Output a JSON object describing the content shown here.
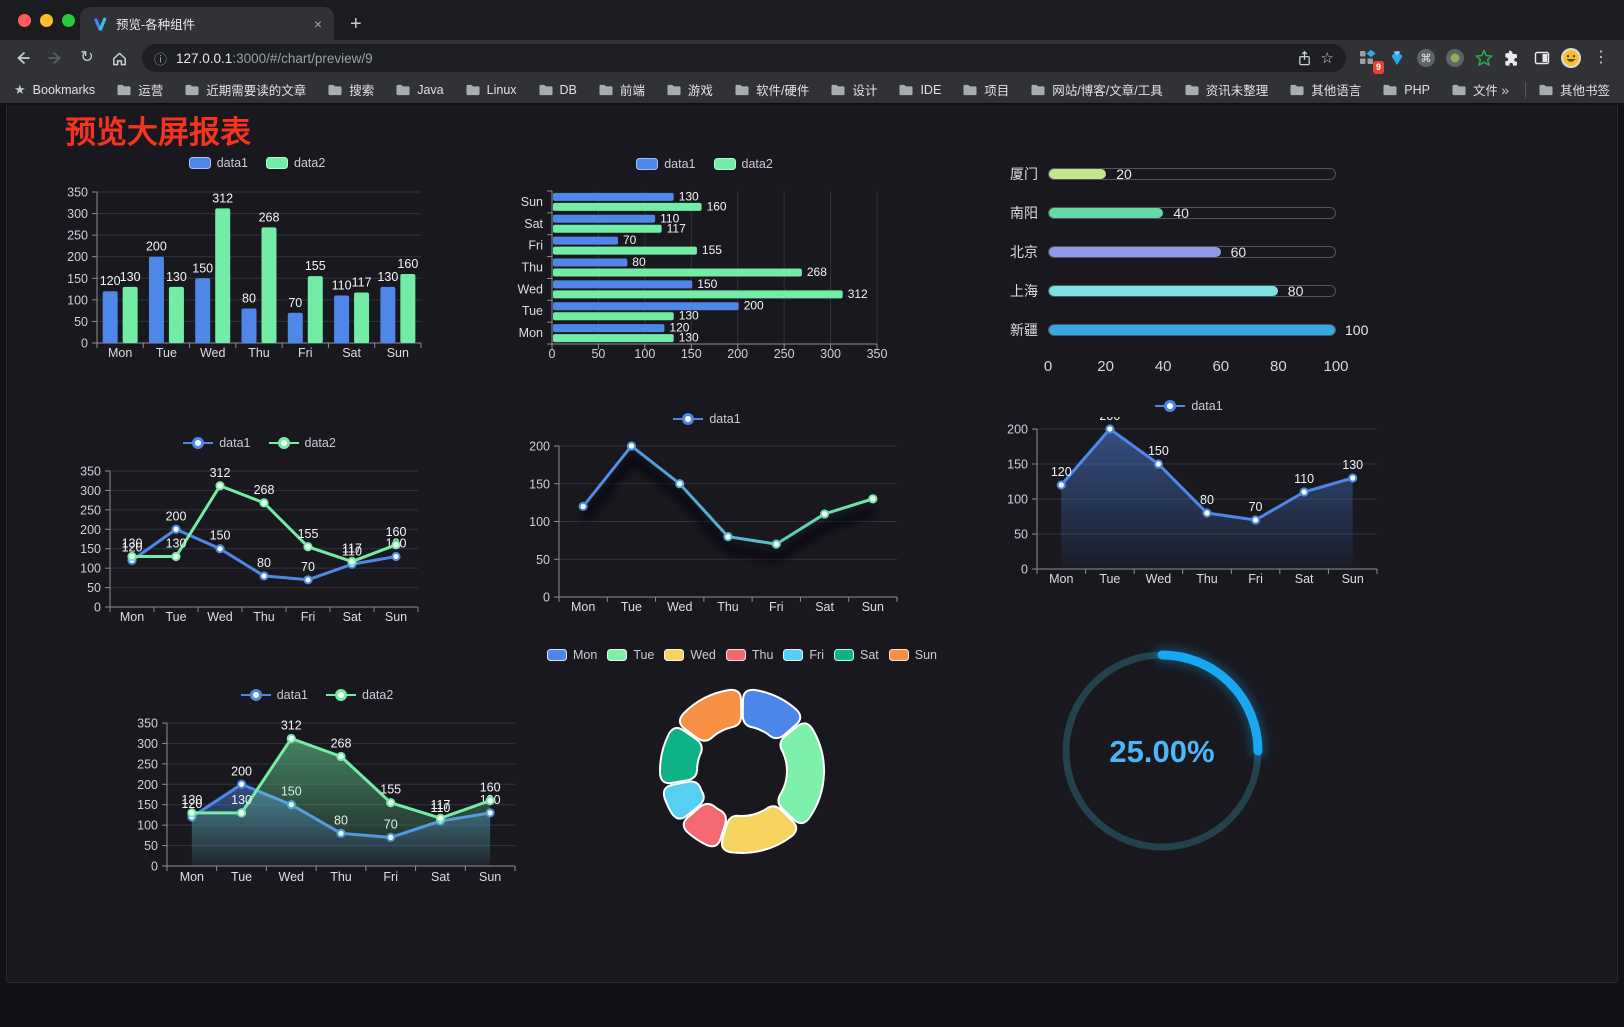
{
  "browser": {
    "tab": {
      "title": "预览-各种组件",
      "close_glyph": "×",
      "new_tab_glyph": "+"
    },
    "url": {
      "host": "127.0.0.1",
      "rest": ":3000/#/chart/preview/9"
    },
    "extension_badge": "9",
    "bookmarks": {
      "label": "Bookmarks",
      "folders": [
        "运营",
        "近期需要读的文章",
        "搜索",
        "Java",
        "Linux",
        "DB",
        "前端",
        "游戏",
        "软件/硬件",
        "设计",
        "IDE",
        "项目",
        "网站/博客/文章/工具",
        "资讯未整理",
        "其他语言",
        "PHP",
        "文件服务器"
      ],
      "overflow_glyph": "»",
      "other_bookmarks": "其他书签"
    }
  },
  "page": {
    "title": "预览大屏报表",
    "title_color": "#f5341f"
  },
  "chart_data": [
    {
      "id": "bar-vertical",
      "type": "bar",
      "categories": [
        "Mon",
        "Tue",
        "Wed",
        "Thu",
        "Fri",
        "Sat",
        "Sun"
      ],
      "series": [
        {
          "name": "data1",
          "color": "#4f87e8",
          "values": [
            120,
            200,
            150,
            80,
            70,
            110,
            130
          ]
        },
        {
          "name": "data2",
          "color": "#73eda6",
          "values": [
            130,
            130,
            312,
            268,
            155,
            117,
            160
          ]
        }
      ],
      "ylim": [
        0,
        350
      ],
      "ytick": 50,
      "value_labels": true,
      "grid": true,
      "legend_position": "top"
    },
    {
      "id": "bar-horizontal",
      "type": "bar-h",
      "categories": [
        "Mon",
        "Tue",
        "Wed",
        "Thu",
        "Fri",
        "Sat",
        "Sun"
      ],
      "series": [
        {
          "name": "data1",
          "color": "#4f87e8",
          "values": [
            120,
            200,
            150,
            80,
            70,
            110,
            130
          ]
        },
        {
          "name": "data2",
          "color": "#73eda6",
          "values": [
            130,
            130,
            312,
            268,
            155,
            117,
            160
          ]
        }
      ],
      "xlim": [
        0,
        350
      ],
      "xtick": 50,
      "value_labels": true,
      "grid": true,
      "legend_position": "top"
    },
    {
      "id": "progress-bars",
      "type": "progress",
      "max": 100,
      "axis_ticks": [
        0,
        20,
        40,
        60,
        80,
        100
      ],
      "items": [
        {
          "label": "厦门",
          "value": 20,
          "color": "#c5e48c"
        },
        {
          "label": "南阳",
          "value": 40,
          "color": "#63d9a5"
        },
        {
          "label": "北京",
          "value": 60,
          "color": "#8f9ae8"
        },
        {
          "label": "上海",
          "value": 80,
          "color": "#7fe3e2"
        },
        {
          "label": "新疆",
          "value": 100,
          "color": "#38a7e6"
        }
      ]
    },
    {
      "id": "line-2series",
      "type": "line",
      "categories": [
        "Mon",
        "Tue",
        "Wed",
        "Thu",
        "Fri",
        "Sat",
        "Sun"
      ],
      "series": [
        {
          "name": "data1",
          "color": "#4f87e8",
          "values": [
            120,
            200,
            150,
            80,
            70,
            110,
            130
          ]
        },
        {
          "name": "data2",
          "color": "#73eda6",
          "values": [
            130,
            130,
            312,
            268,
            155,
            117,
            160
          ]
        }
      ],
      "ylim": [
        0,
        350
      ],
      "ytick": 50,
      "value_labels": true,
      "grid": true,
      "legend_position": "top"
    },
    {
      "id": "line-gradient",
      "type": "line",
      "categories": [
        "Mon",
        "Tue",
        "Wed",
        "Thu",
        "Fri",
        "Sat",
        "Sun"
      ],
      "series": [
        {
          "name": "data1",
          "color": "#4f87e8",
          "color2": "#70eba4",
          "values": [
            120,
            200,
            150,
            80,
            70,
            110,
            130
          ]
        }
      ],
      "ylim": [
        0,
        200
      ],
      "ytick": 50,
      "value_labels": false,
      "shadow": true,
      "grid": true,
      "legend_position": "top"
    },
    {
      "id": "line-area",
      "type": "line",
      "categories": [
        "Mon",
        "Tue",
        "Wed",
        "Thu",
        "Fri",
        "Sat",
        "Sun"
      ],
      "series": [
        {
          "name": "data1",
          "color": "#4f87e8",
          "values": [
            120,
            200,
            150,
            80,
            70,
            110,
            130
          ],
          "area": true
        }
      ],
      "ylim": [
        0,
        200
      ],
      "ytick": 50,
      "value_labels": true,
      "grid": true,
      "legend_position": "top"
    },
    {
      "id": "line-2area",
      "type": "line",
      "categories": [
        "Mon",
        "Tue",
        "Wed",
        "Thu",
        "Fri",
        "Sat",
        "Sun"
      ],
      "series": [
        {
          "name": "data1",
          "color": "#4f87e8",
          "values": [
            120,
            200,
            150,
            80,
            70,
            110,
            130
          ],
          "area": true
        },
        {
          "name": "data2",
          "color": "#73eda6",
          "values": [
            130,
            130,
            312,
            268,
            155,
            117,
            160
          ],
          "area": true
        }
      ],
      "ylim": [
        0,
        350
      ],
      "ytick": 50,
      "value_labels": true,
      "grid": true,
      "legend_position": "top"
    },
    {
      "id": "donut",
      "type": "pie",
      "items": [
        {
          "label": "Mon",
          "value": 120,
          "color": "#4a87e9"
        },
        {
          "label": "Tue",
          "value": 200,
          "color": "#7df0a9"
        },
        {
          "label": "Wed",
          "value": 150,
          "color": "#f6d35f"
        },
        {
          "label": "Thu",
          "value": 80,
          "color": "#f4696f"
        },
        {
          "label": "Fri",
          "value": 70,
          "color": "#57cff2"
        },
        {
          "label": "Sat",
          "value": 110,
          "color": "#0fb287"
        },
        {
          "label": "Sun",
          "value": 130,
          "color": "#f78f45"
        }
      ],
      "legend_position": "top"
    },
    {
      "id": "gauge",
      "type": "gauge",
      "value": 25,
      "max": 100,
      "label": "25.00%",
      "color": "#18a7f0",
      "track_color": "#24424d",
      "text_color": "#4db6f7"
    }
  ]
}
